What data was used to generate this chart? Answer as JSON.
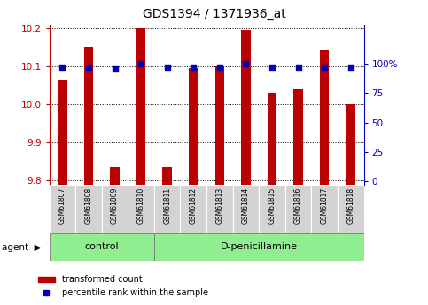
{
  "title": "GDS1394 / 1371936_at",
  "samples": [
    "GSM61807",
    "GSM61808",
    "GSM61809",
    "GSM61810",
    "GSM61811",
    "GSM61812",
    "GSM61813",
    "GSM61814",
    "GSM61815",
    "GSM61816",
    "GSM61817",
    "GSM61818"
  ],
  "transformed_count": [
    10.065,
    10.15,
    9.835,
    10.2,
    9.835,
    10.095,
    10.1,
    10.195,
    10.03,
    10.04,
    10.145,
    10.0
  ],
  "percentile_rank": [
    97,
    97,
    95,
    100,
    97,
    97,
    97,
    100,
    97,
    97,
    97,
    97
  ],
  "ylim_left": [
    9.79,
    10.21
  ],
  "ylim_right": [
    -2.5,
    133
  ],
  "yticks_left": [
    9.8,
    9.9,
    10.0,
    10.1,
    10.2
  ],
  "yticks_right": [
    0,
    25,
    50,
    75,
    100
  ],
  "ytick_right_labels": [
    "0",
    "25",
    "50",
    "75",
    "100%"
  ],
  "bar_color": "#bb0000",
  "dot_color": "#0000bb",
  "bar_width": 0.35,
  "control_count": 4,
  "legend_bar_label": "transformed count",
  "legend_dot_label": "percentile rank within the sample",
  "background_color": "#ffffff"
}
